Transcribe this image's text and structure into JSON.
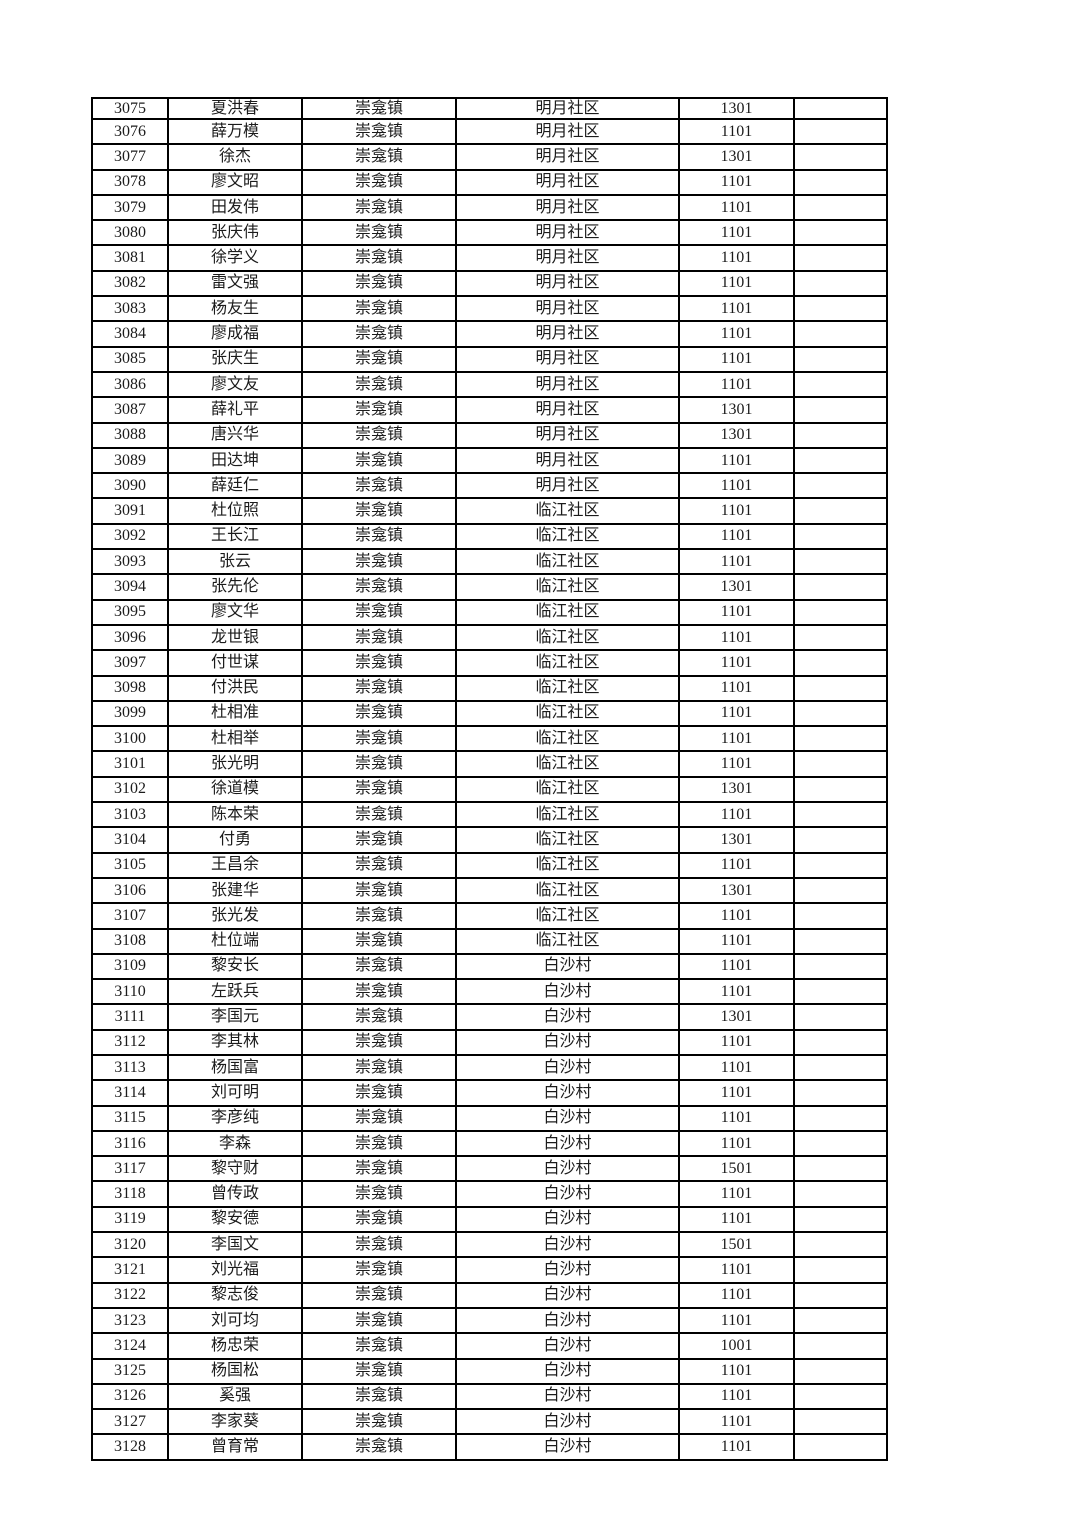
{
  "document": {
    "background_color": "#ffffff",
    "border_color": "#000000",
    "text_color": "#1b1b1b"
  },
  "table": {
    "column_keys": [
      "serial",
      "name",
      "town",
      "community",
      "code",
      "blank"
    ],
    "rows": [
      [
        "3075",
        "夏洪春",
        "崇龛镇",
        "明月社区",
        "1301",
        ""
      ],
      [
        "3076",
        "薛万模",
        "崇龛镇",
        "明月社区",
        "1101",
        ""
      ],
      [
        "3077",
        "徐杰",
        "崇龛镇",
        "明月社区",
        "1301",
        ""
      ],
      [
        "3078",
        "廖文昭",
        "崇龛镇",
        "明月社区",
        "1101",
        ""
      ],
      [
        "3079",
        "田发伟",
        "崇龛镇",
        "明月社区",
        "1101",
        ""
      ],
      [
        "3080",
        "张庆伟",
        "崇龛镇",
        "明月社区",
        "1101",
        ""
      ],
      [
        "3081",
        "徐学义",
        "崇龛镇",
        "明月社区",
        "1101",
        ""
      ],
      [
        "3082",
        "雷文强",
        "崇龛镇",
        "明月社区",
        "1101",
        ""
      ],
      [
        "3083",
        "杨友生",
        "崇龛镇",
        "明月社区",
        "1101",
        ""
      ],
      [
        "3084",
        "廖成福",
        "崇龛镇",
        "明月社区",
        "1101",
        ""
      ],
      [
        "3085",
        "张庆生",
        "崇龛镇",
        "明月社区",
        "1101",
        ""
      ],
      [
        "3086",
        "廖文友",
        "崇龛镇",
        "明月社区",
        "1101",
        ""
      ],
      [
        "3087",
        "薛礼平",
        "崇龛镇",
        "明月社区",
        "1301",
        ""
      ],
      [
        "3088",
        "唐兴华",
        "崇龛镇",
        "明月社区",
        "1301",
        ""
      ],
      [
        "3089",
        "田达坤",
        "崇龛镇",
        "明月社区",
        "1101",
        ""
      ],
      [
        "3090",
        "薛廷仁",
        "崇龛镇",
        "明月社区",
        "1101",
        ""
      ],
      [
        "3091",
        "杜位照",
        "崇龛镇",
        "临江社区",
        "1101",
        ""
      ],
      [
        "3092",
        "王长江",
        "崇龛镇",
        "临江社区",
        "1101",
        ""
      ],
      [
        "3093",
        "张云",
        "崇龛镇",
        "临江社区",
        "1101",
        ""
      ],
      [
        "3094",
        "张先伦",
        "崇龛镇",
        "临江社区",
        "1301",
        ""
      ],
      [
        "3095",
        "廖文华",
        "崇龛镇",
        "临江社区",
        "1101",
        ""
      ],
      [
        "3096",
        "龙世银",
        "崇龛镇",
        "临江社区",
        "1101",
        ""
      ],
      [
        "3097",
        "付世谋",
        "崇龛镇",
        "临江社区",
        "1101",
        ""
      ],
      [
        "3098",
        "付洪民",
        "崇龛镇",
        "临江社区",
        "1101",
        ""
      ],
      [
        "3099",
        "杜相准",
        "崇龛镇",
        "临江社区",
        "1101",
        ""
      ],
      [
        "3100",
        "杜相举",
        "崇龛镇",
        "临江社区",
        "1101",
        ""
      ],
      [
        "3101",
        "张光明",
        "崇龛镇",
        "临江社区",
        "1101",
        ""
      ],
      [
        "3102",
        "徐道模",
        "崇龛镇",
        "临江社区",
        "1301",
        ""
      ],
      [
        "3103",
        "陈本荣",
        "崇龛镇",
        "临江社区",
        "1101",
        ""
      ],
      [
        "3104",
        "付勇",
        "崇龛镇",
        "临江社区",
        "1301",
        ""
      ],
      [
        "3105",
        "王昌余",
        "崇龛镇",
        "临江社区",
        "1101",
        ""
      ],
      [
        "3106",
        "张建华",
        "崇龛镇",
        "临江社区",
        "1301",
        ""
      ],
      [
        "3107",
        "张光发",
        "崇龛镇",
        "临江社区",
        "1101",
        ""
      ],
      [
        "3108",
        "杜位端",
        "崇龛镇",
        "临江社区",
        "1101",
        ""
      ],
      [
        "3109",
        "黎安长",
        "崇龛镇",
        "白沙村",
        "1101",
        ""
      ],
      [
        "3110",
        "左跃兵",
        "崇龛镇",
        "白沙村",
        "1101",
        ""
      ],
      [
        "3111",
        "李国元",
        "崇龛镇",
        "白沙村",
        "1301",
        ""
      ],
      [
        "3112",
        "李其林",
        "崇龛镇",
        "白沙村",
        "1101",
        ""
      ],
      [
        "3113",
        "杨国富",
        "崇龛镇",
        "白沙村",
        "1101",
        ""
      ],
      [
        "3114",
        "刘可明",
        "崇龛镇",
        "白沙村",
        "1101",
        ""
      ],
      [
        "3115",
        "李彦纯",
        "崇龛镇",
        "白沙村",
        "1101",
        ""
      ],
      [
        "3116",
        "李森",
        "崇龛镇",
        "白沙村",
        "1101",
        ""
      ],
      [
        "3117",
        "黎守财",
        "崇龛镇",
        "白沙村",
        "1501",
        ""
      ],
      [
        "3118",
        "曾传政",
        "崇龛镇",
        "白沙村",
        "1101",
        ""
      ],
      [
        "3119",
        "黎安德",
        "崇龛镇",
        "白沙村",
        "1101",
        ""
      ],
      [
        "3120",
        "李国文",
        "崇龛镇",
        "白沙村",
        "1501",
        ""
      ],
      [
        "3121",
        "刘光福",
        "崇龛镇",
        "白沙村",
        "1101",
        ""
      ],
      [
        "3122",
        "黎志俊",
        "崇龛镇",
        "白沙村",
        "1101",
        ""
      ],
      [
        "3123",
        "刘可均",
        "崇龛镇",
        "白沙村",
        "1101",
        ""
      ],
      [
        "3124",
        "杨忠荣",
        "崇龛镇",
        "白沙村",
        "1001",
        ""
      ],
      [
        "3125",
        "杨国松",
        "崇龛镇",
        "白沙村",
        "1101",
        ""
      ],
      [
        "3126",
        "奚强",
        "崇龛镇",
        "白沙村",
        "1101",
        ""
      ],
      [
        "3127",
        "李家葵",
        "崇龛镇",
        "白沙村",
        "1101",
        ""
      ],
      [
        "3128",
        "曾育常",
        "崇龛镇",
        "白沙村",
        "1101",
        ""
      ]
    ]
  }
}
